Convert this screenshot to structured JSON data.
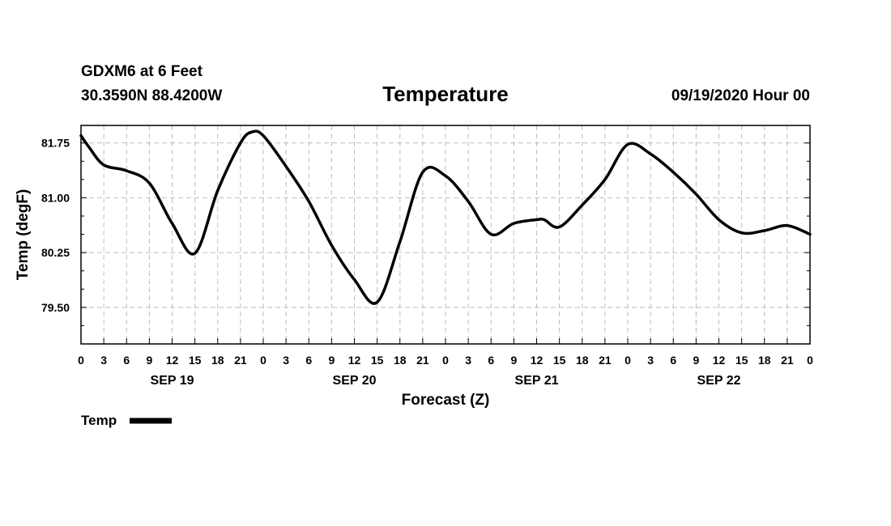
{
  "header": {
    "station": "GDXM6 at 6 Feet",
    "coords": "30.3590N 88.4200W",
    "title": "Temperature",
    "datetime": "09/19/2020 Hour 00"
  },
  "chart_data": {
    "type": "line",
    "title": "Temperature",
    "xlabel": "Forecast (Z)",
    "ylabel": "Temp (degF)",
    "xlim": [
      0,
      96
    ],
    "ylim": [
      79.0,
      81.99
    ],
    "y_ticks": [
      79.5,
      80.25,
      81.0,
      81.75
    ],
    "y_tick_labels": [
      "79.50",
      "80.25",
      "81.00",
      "81.75"
    ],
    "x_ticks": [
      0,
      3,
      6,
      9,
      12,
      15,
      18,
      21,
      24,
      27,
      30,
      33,
      36,
      39,
      42,
      45,
      48,
      51,
      54,
      57,
      60,
      63,
      66,
      69,
      72,
      75,
      78,
      81,
      84,
      87,
      90,
      93,
      96
    ],
    "x_tick_labels": [
      "0",
      "3",
      "6",
      "9",
      "12",
      "15",
      "18",
      "21",
      "0",
      "3",
      "6",
      "9",
      "12",
      "15",
      "18",
      "21",
      "0",
      "3",
      "6",
      "9",
      "12",
      "15",
      "18",
      "21",
      "0",
      "3",
      "6",
      "9",
      "12",
      "15",
      "18",
      "21",
      "0"
    ],
    "day_labels": [
      {
        "x": 12,
        "label": "SEP 19"
      },
      {
        "x": 36,
        "label": "SEP 20"
      },
      {
        "x": 60,
        "label": "SEP 21"
      },
      {
        "x": 84,
        "label": "SEP 22"
      }
    ],
    "grid": true,
    "legend": {
      "position": "bottom-left",
      "label": "Temp"
    },
    "series": [
      {
        "name": "Temp",
        "color": "#000000",
        "x": [
          0,
          1,
          3,
          6,
          9,
          12,
          15,
          18,
          21,
          22.5,
          24,
          27,
          30,
          33,
          36,
          39,
          42,
          45,
          48,
          51,
          54,
          57,
          60,
          61,
          63,
          66,
          69,
          72,
          75,
          78,
          81,
          84,
          87,
          90,
          93,
          96
        ],
        "y": [
          81.85,
          81.7,
          81.45,
          81.37,
          81.2,
          80.65,
          80.24,
          81.1,
          81.75,
          81.9,
          81.85,
          81.43,
          80.95,
          80.35,
          79.88,
          79.57,
          80.4,
          81.35,
          81.3,
          80.95,
          80.5,
          80.65,
          80.7,
          80.7,
          80.6,
          80.9,
          81.25,
          81.73,
          81.6,
          81.35,
          81.05,
          80.7,
          80.52,
          80.55,
          80.62,
          80.5
        ]
      }
    ]
  }
}
